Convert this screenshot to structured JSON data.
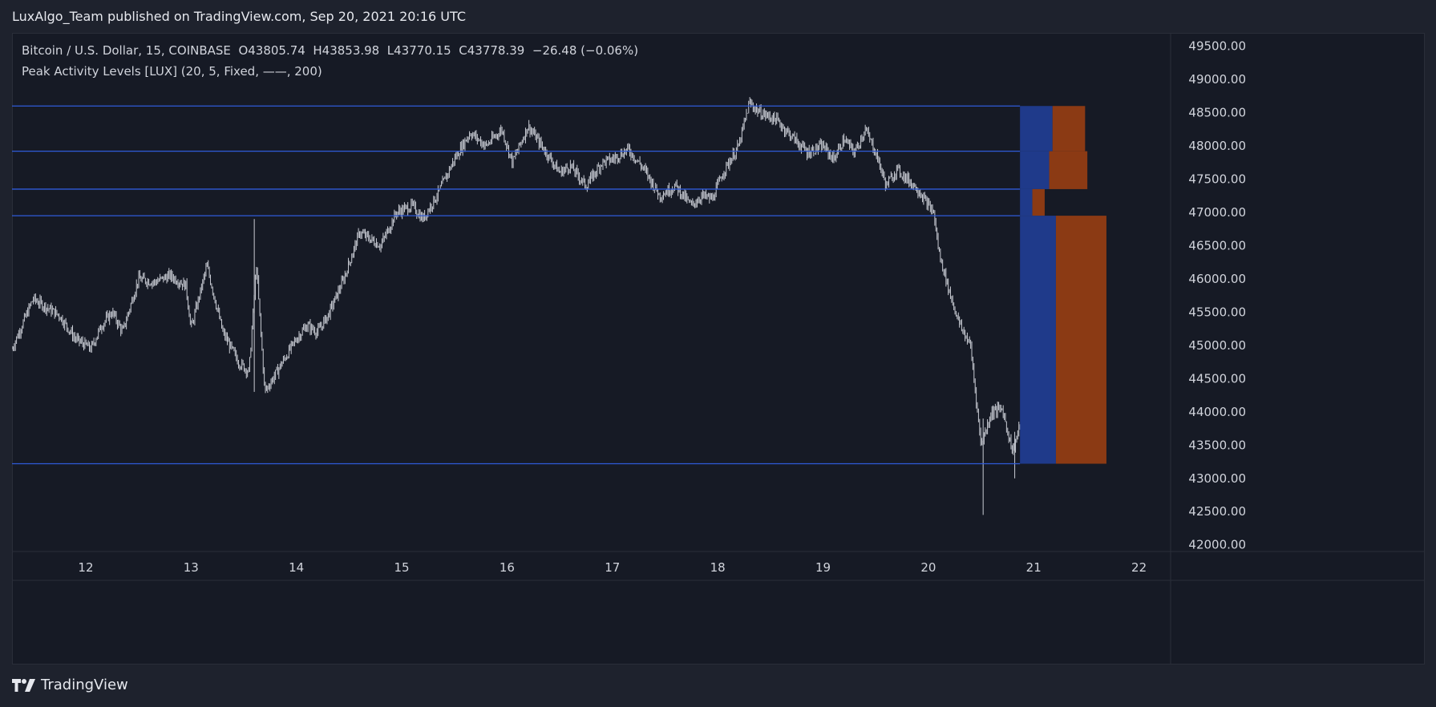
{
  "header": {
    "publisher_text": "LuxAlgo_Team published on TradingView.com, Sep 20, 2021 20:16 UTC"
  },
  "legend": {
    "symbol_name": "Bitcoin / U.S. Dollar, 15, COINBASE",
    "ohlc": [
      {
        "label": "O",
        "value": "43805.74"
      },
      {
        "label": "H",
        "value": "43853.98"
      },
      {
        "label": "L",
        "value": "43770.15"
      },
      {
        "label": "C",
        "value": "43778.39"
      }
    ],
    "change": "−26.48 (−0.06%)",
    "indicator": "Peak Activity Levels [LUX] (20, 5, Fixed, ——, 200)"
  },
  "footer": {
    "brand": "TradingView"
  },
  "colors": {
    "background": "#161a25",
    "candle": "#c9ccd4",
    "level_line": "#2f5bd9",
    "bar_blue": "#1f3a8a",
    "bar_orange": "#8b3a14",
    "axis_text": "#d1d4dc"
  },
  "chart_data": {
    "type": "line",
    "title": "Bitcoin / U.S. Dollar, 15, COINBASE",
    "xlabel": "",
    "ylabel": "",
    "x_ticks": [
      "12",
      "13",
      "14",
      "15",
      "16",
      "17",
      "18",
      "19",
      "20",
      "21",
      "22"
    ],
    "y_ticks": [
      "42000.00",
      "42500.00",
      "43000.00",
      "43500.00",
      "44000.00",
      "44500.00",
      "45000.00",
      "45500.00",
      "46000.00",
      "46500.00",
      "47000.00",
      "47500.00",
      "48000.00",
      "48500.00",
      "49000.00",
      "49500.00"
    ],
    "xlim": [
      11.3,
      22.3
    ],
    "ylim": [
      41900,
      49700
    ],
    "grid": false,
    "series": [
      {
        "name": "Bitcoin / U.S. Dollar",
        "x": [
          11.3,
          11.5,
          11.75,
          11.9,
          12.05,
          12.15,
          12.25,
          12.35,
          12.5,
          12.65,
          12.8,
          12.95,
          13.0,
          13.15,
          13.3,
          13.45,
          13.55,
          13.62,
          13.7,
          13.85,
          14.0,
          14.1,
          14.2,
          14.3,
          14.45,
          14.6,
          14.8,
          14.95,
          15.1,
          15.2,
          15.35,
          15.5,
          15.65,
          15.8,
          15.95,
          16.05,
          16.2,
          16.35,
          16.5,
          16.6,
          16.75,
          16.9,
          17.0,
          17.15,
          17.3,
          17.45,
          17.6,
          17.75,
          17.85,
          17.95,
          18.05,
          18.2,
          18.3,
          18.4,
          18.55,
          18.7,
          18.85,
          19.0,
          19.1,
          19.2,
          19.3,
          19.4,
          19.5,
          19.6,
          19.7,
          19.8,
          19.9,
          20.0,
          20.05,
          20.1,
          20.2,
          20.3,
          20.4,
          20.5,
          20.6,
          20.7,
          20.8,
          20.87
        ],
        "values": [
          44950,
          45700,
          45450,
          45100,
          44950,
          45300,
          45500,
          45200,
          46000,
          45950,
          46050,
          45900,
          45250,
          46200,
          45200,
          44750,
          44600,
          46200,
          44300,
          44700,
          45100,
          45300,
          45200,
          45450,
          46000,
          46700,
          46500,
          47000,
          47100,
          46900,
          47300,
          47800,
          48200,
          48000,
          48250,
          47750,
          48300,
          47950,
          47600,
          47700,
          47400,
          47750,
          47800,
          47950,
          47650,
          47250,
          47400,
          47100,
          47250,
          47200,
          47600,
          48000,
          48650,
          48500,
          48400,
          48150,
          47900,
          48000,
          47800,
          48100,
          47900,
          48250,
          47900,
          47400,
          47650,
          47500,
          47350,
          47100,
          47000,
          46400,
          45800,
          45300,
          45000,
          43500,
          44000,
          44050,
          43400,
          43800
        ]
      }
    ],
    "levels": [
      48600,
      47920,
      47350,
      46950,
      43220
    ],
    "volume_profile": [
      {
        "from": 47920,
        "to": 48600,
        "buy": 0.29,
        "sell": 0.29
      },
      {
        "from": 47350,
        "to": 47920,
        "buy": 0.26,
        "sell": 0.34
      },
      {
        "from": 46950,
        "to": 47350,
        "buy": 0.11,
        "sell": 0.11
      },
      {
        "from": 43220,
        "to": 46950,
        "buy": 0.32,
        "sell": 0.45
      }
    ]
  }
}
